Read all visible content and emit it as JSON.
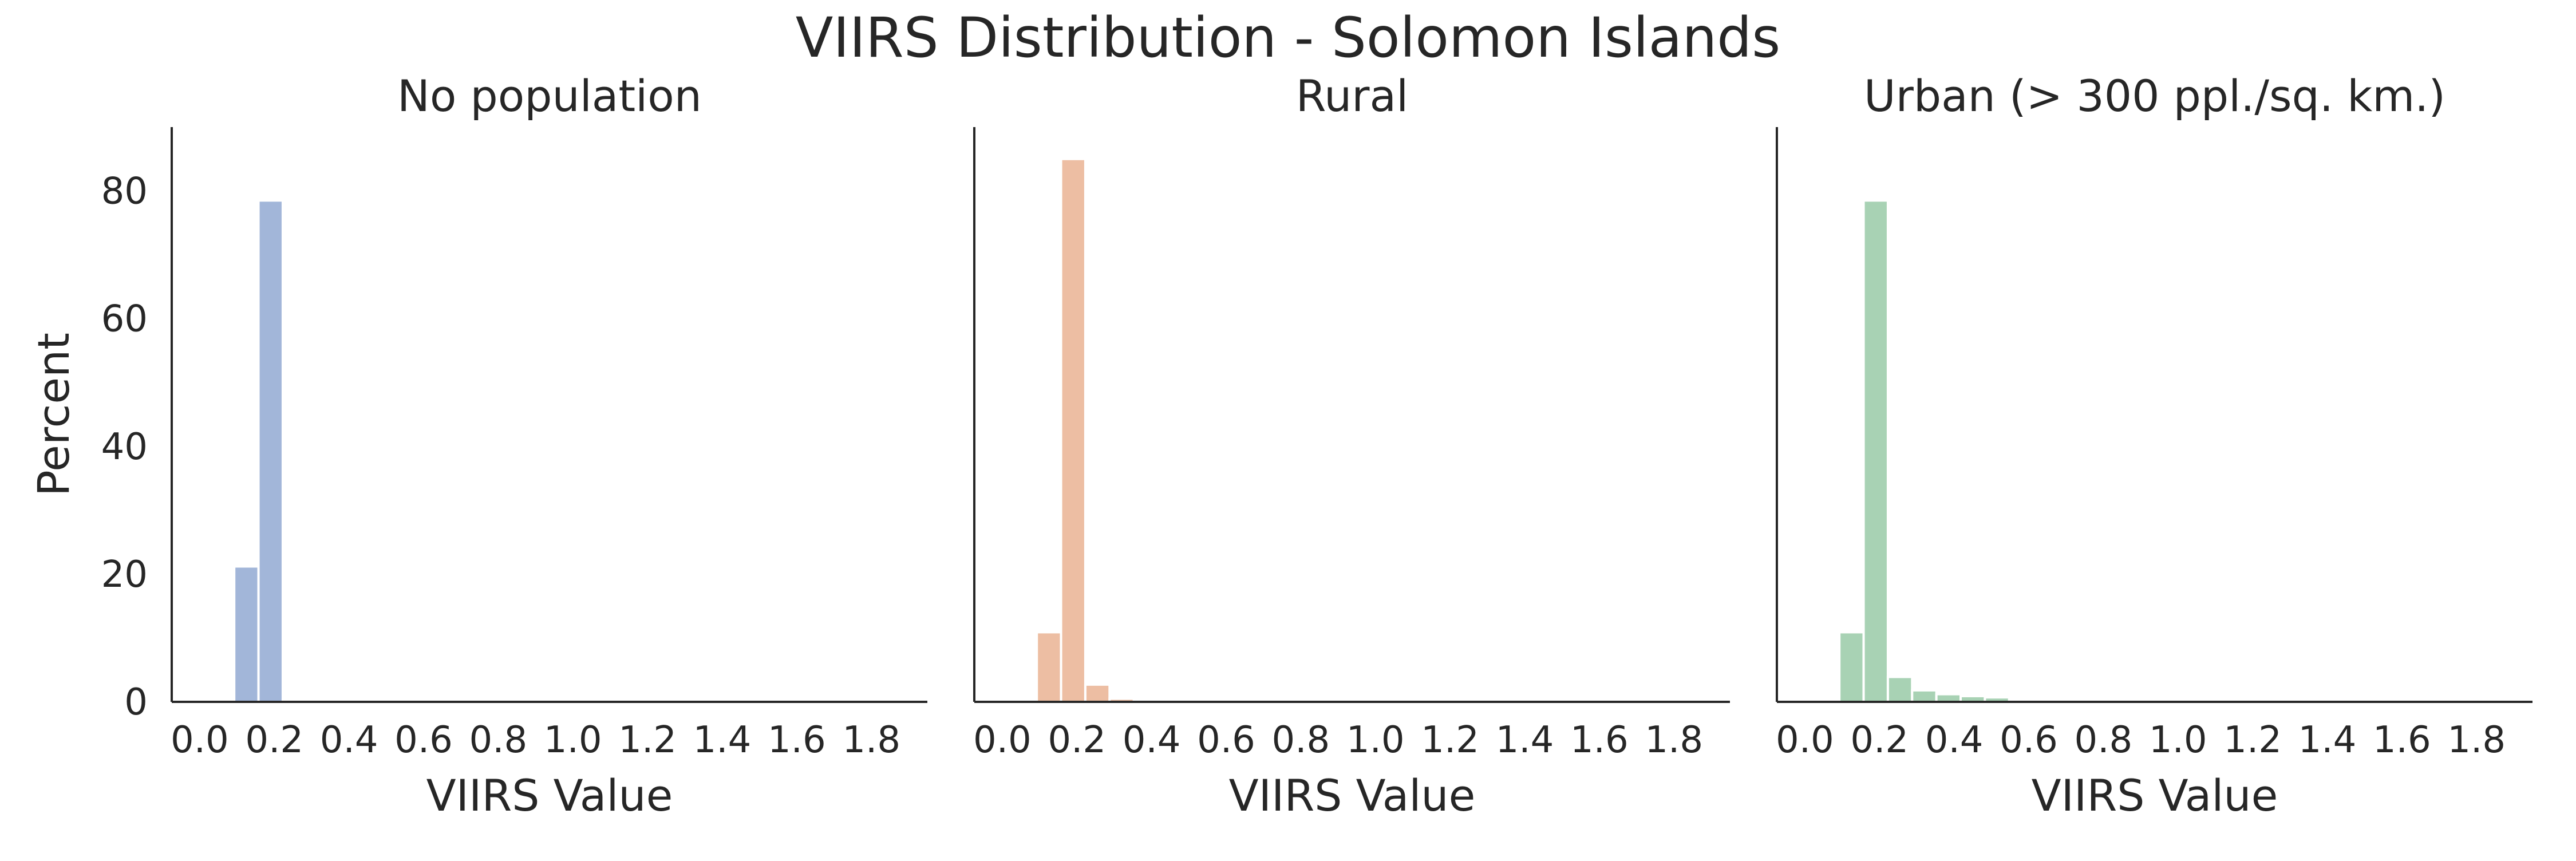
{
  "figure": {
    "title": "VIIRS Distribution - Solomon Islands"
  },
  "chart_data": [
    {
      "type": "bar",
      "title": "No population",
      "xlabel": "VIIRS Value",
      "ylabel": "Percent",
      "bin_width": 0.065,
      "x": [
        0.125,
        0.19,
        0.255
      ],
      "values": [
        21.2,
        78.5,
        0.3
      ],
      "xlim": [
        -0.075,
        1.95
      ],
      "ylim": [
        0,
        90
      ],
      "xticks": [
        "0.0",
        "0.2",
        "0.4",
        "0.6",
        "0.8",
        "1.0",
        "1.2",
        "1.4",
        "1.6",
        "1.8"
      ],
      "yticks": [
        "0",
        "20",
        "40",
        "60",
        "80"
      ],
      "color": "#a2b6d9"
    },
    {
      "type": "bar",
      "title": "Rural",
      "xlabel": "VIIRS Value",
      "ylabel": "",
      "bin_width": 0.065,
      "x": [
        0.125,
        0.19,
        0.255,
        0.32,
        0.385
      ],
      "values": [
        10.9,
        85.0,
        2.7,
        0.5,
        0.2
      ],
      "xlim": [
        -0.075,
        1.95
      ],
      "ylim": [
        0,
        90
      ],
      "xticks": [
        "0.0",
        "0.2",
        "0.4",
        "0.6",
        "0.8",
        "1.0",
        "1.2",
        "1.4",
        "1.6",
        "1.8"
      ],
      "yticks": [],
      "color": "#edbea3"
    },
    {
      "type": "bar",
      "title": "Urban (> 300 ppl./sq. km.)",
      "xlabel": "VIIRS Value",
      "ylabel": "",
      "bin_width": 0.065,
      "x": [
        0.125,
        0.19,
        0.255,
        0.32,
        0.385,
        0.45,
        0.515,
        0.58,
        0.645
      ],
      "values": [
        10.9,
        78.5,
        3.9,
        1.8,
        1.2,
        0.9,
        0.7,
        0.3,
        0.2
      ],
      "xlim": [
        -0.075,
        1.95
      ],
      "ylim": [
        0,
        90
      ],
      "xticks": [
        "0.0",
        "0.2",
        "0.4",
        "0.6",
        "0.8",
        "1.0",
        "1.2",
        "1.4",
        "1.6",
        "1.8"
      ],
      "yticks": [],
      "color": "#a8d2b4"
    }
  ]
}
